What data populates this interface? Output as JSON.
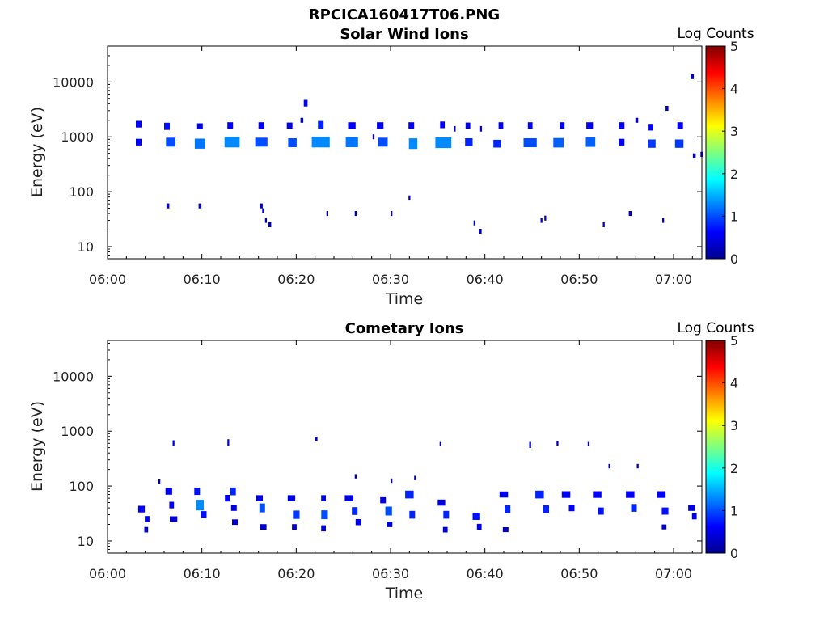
{
  "figure_title": "RPCICA160417T06.PNG",
  "colorbar": {
    "label": "Log Counts",
    "ticks": [
      "0",
      "1",
      "2",
      "3",
      "4",
      "5"
    ],
    "range": [
      0,
      5
    ],
    "colormap": "jet"
  },
  "chart_data": [
    {
      "type": "heatmap",
      "title": "Solar Wind Ions",
      "xlabel": "Time",
      "ylabel": "Energy (eV)",
      "x_ticks": [
        "06:00",
        "06:10",
        "06:20",
        "06:30",
        "06:40",
        "06:50",
        "07:00"
      ],
      "y_ticks": [
        "10",
        "100",
        "1000",
        "10000"
      ],
      "x_range_minutes": [
        0,
        63
      ],
      "y_range_eV": [
        6,
        45000
      ],
      "y_scale": "log",
      "colorbar_label": "Log Counts",
      "color_range": [
        0,
        5
      ],
      "cells": [
        [
          3.3,
          1700,
          0.6,
          0.6
        ],
        [
          3.3,
          800,
          0.6,
          0.6
        ],
        [
          6.3,
          1550,
          0.7,
          0.6
        ],
        [
          6.7,
          800,
          1.0,
          1.0
        ],
        [
          9.8,
          1550,
          0.5,
          0.6
        ],
        [
          9.8,
          750,
          1.2,
          1.1
        ],
        [
          13.0,
          1600,
          0.6,
          0.6
        ],
        [
          13.2,
          800,
          1.3,
          1.6
        ],
        [
          16.3,
          1600,
          0.6,
          0.6
        ],
        [
          16.3,
          800,
          1.0,
          1.3
        ],
        [
          19.3,
          1600,
          0.5,
          0.6
        ],
        [
          19.6,
          780,
          1.0,
          0.9
        ],
        [
          22.6,
          1650,
          0.8,
          0.6
        ],
        [
          22.6,
          800,
          1.3,
          1.9
        ],
        [
          25.9,
          1600,
          0.6,
          0.8
        ],
        [
          25.9,
          800,
          1.2,
          1.3
        ],
        [
          28.9,
          1600,
          0.6,
          0.7
        ],
        [
          29.2,
          800,
          1.0,
          1.0
        ],
        [
          32.2,
          1600,
          0.6,
          0.6
        ],
        [
          32.4,
          750,
          1.3,
          0.9
        ],
        [
          35.5,
          1650,
          0.6,
          0.5
        ],
        [
          35.6,
          780,
          1.3,
          1.7
        ],
        [
          38.2,
          1600,
          0.5,
          0.5
        ],
        [
          38.3,
          800,
          0.8,
          0.8
        ],
        [
          41.7,
          1600,
          0.6,
          0.5
        ],
        [
          41.3,
          750,
          0.8,
          0.8
        ],
        [
          44.8,
          1600,
          0.6,
          0.5
        ],
        [
          44.8,
          780,
          1.0,
          1.4
        ],
        [
          48.2,
          1600,
          0.6,
          0.5
        ],
        [
          47.8,
          780,
          1.1,
          1.1
        ],
        [
          51.1,
          1600,
          0.6,
          0.7
        ],
        [
          51.2,
          800,
          1.1,
          1.0
        ],
        [
          54.5,
          1600,
          0.6,
          0.6
        ],
        [
          54.5,
          800,
          0.6,
          0.6
        ],
        [
          57.6,
          1500,
          0.6,
          0.5
        ],
        [
          57.7,
          750,
          0.9,
          0.8
        ],
        [
          60.7,
          1600,
          0.6,
          0.6
        ],
        [
          60.6,
          750,
          0.9,
          0.9
        ],
        [
          21.0,
          4100,
          0.6,
          0.4
        ],
        [
          36.8,
          1400,
          0.4,
          0.2
        ],
        [
          39.6,
          1400,
          0.4,
          0.2
        ],
        [
          28.2,
          1000,
          0.3,
          0.2
        ],
        [
          62.0,
          12500,
          0.3,
          0.3
        ],
        [
          59.3,
          3300,
          0.3,
          0.3
        ],
        [
          56.1,
          2000,
          0.3,
          0.3
        ],
        [
          20.6,
          2000,
          0.3,
          0.3
        ],
        [
          62.2,
          450,
          0.3,
          0.3
        ],
        [
          63.0,
          480,
          0.3,
          0.3
        ],
        [
          6.4,
          55,
          0.3,
          0.3
        ],
        [
          9.8,
          55,
          0.3,
          0.3
        ],
        [
          16.3,
          55,
          0.3,
          0.3
        ],
        [
          16.5,
          45,
          0.3,
          0.2
        ],
        [
          16.8,
          30,
          0.3,
          0.2
        ],
        [
          17.2,
          25,
          0.3,
          0.3
        ],
        [
          23.3,
          40,
          0.3,
          0.2
        ],
        [
          26.3,
          40,
          0.3,
          0.2
        ],
        [
          30.1,
          40,
          0.3,
          0.2
        ],
        [
          32.0,
          78,
          0.2,
          0.2
        ],
        [
          38.9,
          27,
          0.3,
          0.2
        ],
        [
          39.5,
          19,
          0.3,
          0.3
        ],
        [
          46.0,
          30,
          0.3,
          0.2
        ],
        [
          46.4,
          33,
          0.3,
          0.2
        ],
        [
          52.6,
          25,
          0.3,
          0.2
        ],
        [
          55.4,
          40,
          0.3,
          0.3
        ],
        [
          58.9,
          30,
          0.3,
          0.2
        ]
      ]
    },
    {
      "type": "heatmap",
      "title": "Cometary Ions",
      "xlabel": "Time",
      "ylabel": "Energy (eV)",
      "x_ticks": [
        "06:00",
        "06:10",
        "06:20",
        "06:30",
        "06:40",
        "06:50",
        "07:00"
      ],
      "y_ticks": [
        "10",
        "100",
        "1000",
        "10000"
      ],
      "x_range_minutes": [
        0,
        63
      ],
      "y_range_eV": [
        6,
        45000
      ],
      "y_scale": "log",
      "colorbar_label": "Log Counts",
      "color_range": [
        0,
        5
      ],
      "cells": [
        [
          3.6,
          38,
          0.6,
          0.7
        ],
        [
          4.2,
          25,
          0.5,
          0.5
        ],
        [
          4.1,
          16,
          0.4,
          0.4
        ],
        [
          6.5,
          80,
          0.6,
          0.7
        ],
        [
          6.8,
          45,
          0.6,
          0.5
        ],
        [
          7.0,
          25,
          0.4,
          0.8
        ],
        [
          9.5,
          80,
          0.7,
          0.6
        ],
        [
          9.8,
          45,
          1.3,
          0.8
        ],
        [
          10.2,
          30,
          0.7,
          0.6
        ],
        [
          12.7,
          60,
          0.6,
          0.5
        ],
        [
          13.3,
          80,
          0.8,
          0.6
        ],
        [
          13.4,
          40,
          0.5,
          0.6
        ],
        [
          13.5,
          22,
          0.4,
          0.6
        ],
        [
          16.1,
          60,
          0.5,
          0.7
        ],
        [
          16.4,
          40,
          1.0,
          0.6
        ],
        [
          16.5,
          18,
          0.4,
          0.7
        ],
        [
          19.5,
          60,
          0.5,
          0.8
        ],
        [
          20.0,
          30,
          0.9,
          0.7
        ],
        [
          19.8,
          18,
          0.4,
          0.5
        ],
        [
          22.9,
          60,
          0.5,
          0.5
        ],
        [
          23.0,
          30,
          1.0,
          0.7
        ],
        [
          22.9,
          17,
          0.5,
          0.5
        ],
        [
          25.6,
          60,
          0.5,
          0.9
        ],
        [
          26.2,
          35,
          0.8,
          0.6
        ],
        [
          26.6,
          22,
          0.5,
          0.6
        ],
        [
          29.2,
          55,
          0.5,
          0.6
        ],
        [
          29.8,
          35,
          1.0,
          0.7
        ],
        [
          29.9,
          20,
          0.4,
          0.6
        ],
        [
          32.0,
          70,
          0.8,
          0.9
        ],
        [
          32.3,
          30,
          0.8,
          0.6
        ],
        [
          35.4,
          50,
          0.5,
          0.8
        ],
        [
          35.9,
          30,
          0.8,
          0.6
        ],
        [
          35.8,
          16,
          0.4,
          0.5
        ],
        [
          39.1,
          28,
          0.7,
          0.8
        ],
        [
          39.4,
          18,
          0.5,
          0.5
        ],
        [
          42.0,
          70,
          0.5,
          0.9
        ],
        [
          42.4,
          38,
          0.8,
          0.6
        ],
        [
          42.2,
          16,
          0.3,
          0.6
        ],
        [
          45.8,
          70,
          0.8,
          0.9
        ],
        [
          46.5,
          38,
          0.8,
          0.6
        ],
        [
          48.6,
          70,
          0.6,
          0.9
        ],
        [
          49.2,
          40,
          0.6,
          0.6
        ],
        [
          51.9,
          70,
          0.6,
          0.9
        ],
        [
          52.3,
          35,
          0.7,
          0.6
        ],
        [
          55.4,
          70,
          0.6,
          0.9
        ],
        [
          55.8,
          40,
          0.8,
          0.6
        ],
        [
          58.7,
          70,
          0.6,
          0.9
        ],
        [
          59.1,
          35,
          0.7,
          0.7
        ],
        [
          59.0,
          18,
          0.3,
          0.5
        ],
        [
          61.9,
          40,
          0.5,
          0.7
        ],
        [
          62.2,
          28,
          0.5,
          0.5
        ],
        [
          5.5,
          120,
          0.2,
          0.2
        ],
        [
          26.3,
          150,
          0.2,
          0.2
        ],
        [
          30.1,
          125,
          0.2,
          0.2
        ],
        [
          32.6,
          140,
          0.2,
          0.2
        ],
        [
          7.0,
          600,
          0.5,
          0.2
        ],
        [
          12.8,
          620,
          0.6,
          0.2
        ],
        [
          22.1,
          720,
          0.2,
          0.3
        ],
        [
          35.3,
          580,
          0.2,
          0.2
        ],
        [
          44.8,
          560,
          0.5,
          0.2
        ],
        [
          47.7,
          600,
          0.2,
          0.2
        ],
        [
          51.0,
          580,
          0.2,
          0.2
        ],
        [
          53.2,
          230,
          0.2,
          0.2
        ],
        [
          56.2,
          230,
          0.2,
          0.2
        ]
      ]
    }
  ]
}
